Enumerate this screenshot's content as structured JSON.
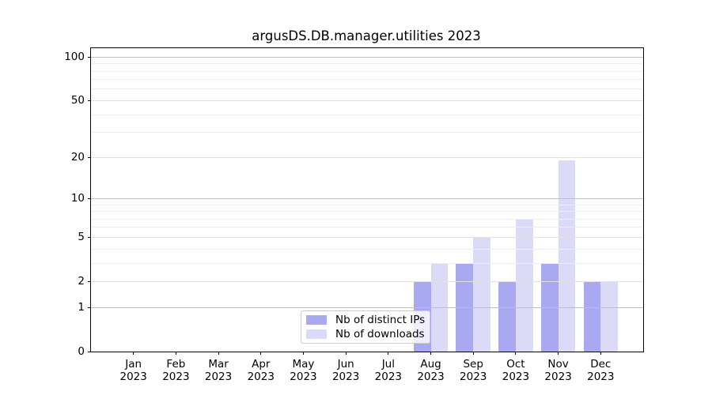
{
  "chart_data": {
    "type": "bar",
    "title": "argusDS.DB.manager.utilities 2023",
    "categories": [
      {
        "month": "Jan",
        "year": "2023"
      },
      {
        "month": "Feb",
        "year": "2023"
      },
      {
        "month": "Mar",
        "year": "2023"
      },
      {
        "month": "Apr",
        "year": "2023"
      },
      {
        "month": "May",
        "year": "2023"
      },
      {
        "month": "Jun",
        "year": "2023"
      },
      {
        "month": "Jul",
        "year": "2023"
      },
      {
        "month": "Aug",
        "year": "2023"
      },
      {
        "month": "Sep",
        "year": "2023"
      },
      {
        "month": "Oct",
        "year": "2023"
      },
      {
        "month": "Nov",
        "year": "2023"
      },
      {
        "month": "Dec",
        "year": "2023"
      }
    ],
    "series": [
      {
        "name": "Nb of distinct IPs",
        "color": "#a9a9f1",
        "values": [
          0,
          0,
          0,
          0,
          0,
          0,
          0,
          2,
          3,
          2,
          3,
          2
        ]
      },
      {
        "name": "Nb of downloads",
        "color": "#dbdbf8",
        "values": [
          0,
          0,
          0,
          0,
          0,
          0,
          0,
          3,
          5,
          7,
          19,
          2
        ]
      }
    ],
    "xlabel": "",
    "ylabel": "",
    "yscale": "log1p",
    "ylim": [
      0,
      115
    ],
    "yticks": [
      0,
      1,
      2,
      5,
      10,
      20,
      50,
      100
    ],
    "minor_yticks": [
      3,
      4,
      6,
      7,
      8,
      9,
      30,
      40,
      60,
      70,
      80,
      90
    ],
    "grid": true,
    "grid_over_bars": true,
    "legend_position": "lower center",
    "colors": {
      "background": "#ffffff",
      "axis": "#000000",
      "decade_gridline": "#bfbfbf",
      "labeled_gridline": "#e2e2e2",
      "minor_gridline": "#efefef",
      "legend_border": "#cccccc"
    }
  }
}
